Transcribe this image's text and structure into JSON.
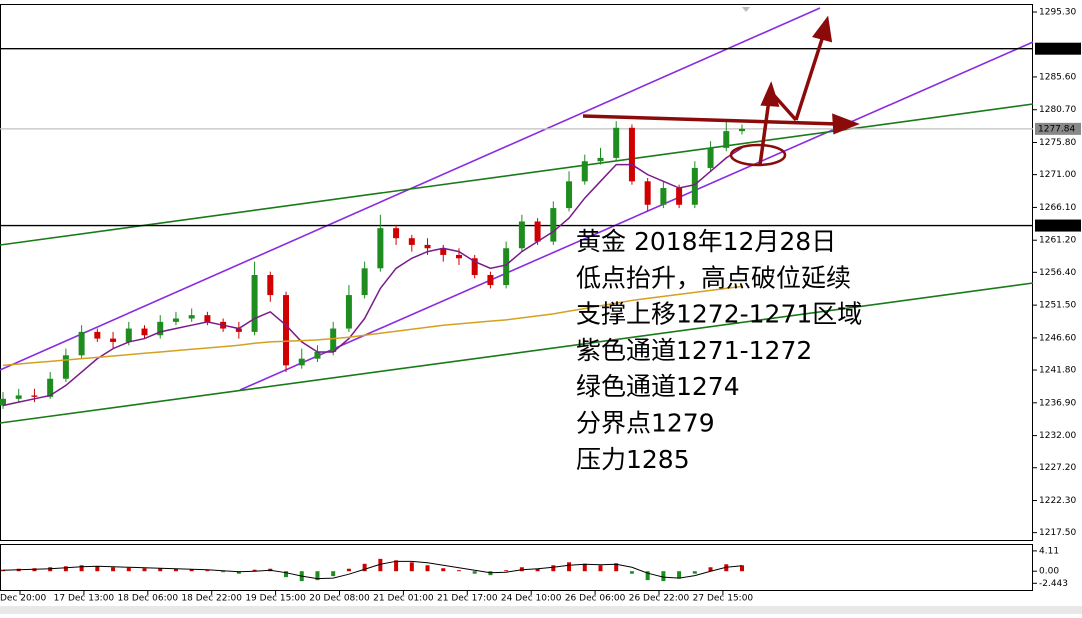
{
  "chart_data": {
    "type": "candlestick",
    "x_labels": [
      "Dec 20:00",
      "17 Dec 13:00",
      "18 Dec 06:00",
      "18 Dec 22:00",
      "19 Dec 15:00",
      "20 Dec 08:00",
      "21 Dec 01:00",
      "21 Dec 17:00",
      "24 Dec 10:00",
      "26 Dec 06:00",
      "26 Dec 22:00",
      "27 Dec 15:00"
    ],
    "open": [
      1236.5,
      1237.5,
      1238.0,
      1237.8,
      1240.5,
      1244.0,
      1247.5,
      1246.5,
      1246.0,
      1248.0,
      1247.0,
      1249.0,
      1249.5,
      1250.0,
      1249.0,
      1248.0,
      1247.5,
      1256.0,
      1253.0,
      1242.5,
      1243.5,
      1244.5,
      1248.0,
      1253.0,
      1257.0,
      1263.0,
      1261.5,
      1260.5,
      1260.0,
      1259.0,
      1258.5,
      1256.0,
      1254.5,
      1260.0,
      1264.0,
      1261.0,
      1266.0,
      1270.0,
      1273.0,
      1273.5,
      1278.0,
      1270.0,
      1266.5,
      1269.0,
      1266.5,
      1272.0,
      1275.0,
      1277.5
    ],
    "high": [
      1238.5,
      1239.0,
      1239.0,
      1241.5,
      1245.0,
      1248.5,
      1248.0,
      1247.5,
      1249.0,
      1248.5,
      1250.0,
      1250.5,
      1251.0,
      1250.5,
      1249.5,
      1249.0,
      1258.0,
      1256.5,
      1253.5,
      1245.0,
      1245.5,
      1249.0,
      1254.5,
      1258.0,
      1265.0,
      1263.5,
      1262.0,
      1261.5,
      1260.5,
      1260.0,
      1259.0,
      1256.5,
      1261.0,
      1265.0,
      1264.5,
      1267.0,
      1271.5,
      1274.0,
      1275.0,
      1279.0,
      1278.5,
      1270.5,
      1270.0,
      1269.5,
      1273.0,
      1276.0,
      1279.0,
      1278.5
    ],
    "low": [
      1236.0,
      1237.0,
      1237.0,
      1237.5,
      1240.0,
      1243.5,
      1246.0,
      1245.0,
      1245.5,
      1246.5,
      1246.5,
      1248.5,
      1249.0,
      1248.5,
      1247.5,
      1246.5,
      1247.0,
      1252.0,
      1241.5,
      1242.0,
      1243.0,
      1244.0,
      1247.5,
      1252.5,
      1256.5,
      1260.5,
      1259.5,
      1259.0,
      1258.0,
      1257.5,
      1255.5,
      1254.0,
      1254.0,
      1259.5,
      1260.5,
      1260.5,
      1265.5,
      1269.5,
      1272.5,
      1273.0,
      1269.5,
      1265.5,
      1266.0,
      1266.0,
      1266.0,
      1271.5,
      1274.5,
      1277.0
    ],
    "close": [
      1237.5,
      1238.0,
      1237.8,
      1240.5,
      1244.0,
      1247.5,
      1246.5,
      1246.0,
      1248.0,
      1247.0,
      1249.0,
      1249.5,
      1250.0,
      1249.0,
      1248.0,
      1247.5,
      1256.0,
      1253.0,
      1242.5,
      1243.5,
      1244.5,
      1248.0,
      1253.0,
      1257.0,
      1263.0,
      1261.5,
      1260.5,
      1260.0,
      1259.0,
      1258.5,
      1256.0,
      1254.5,
      1260.0,
      1264.0,
      1261.0,
      1266.0,
      1270.0,
      1273.0,
      1273.5,
      1278.0,
      1270.0,
      1266.5,
      1269.0,
      1266.5,
      1272.0,
      1275.0,
      1277.5,
      1277.84
    ],
    "up_color": "#1e8c1e",
    "down_color": "#d00000",
    "overlays": [
      {
        "color": "#7a1a8a",
        "values": [
          1236.5,
          1237,
          1237.5,
          1238,
          1239.5,
          1241.5,
          1243.5,
          1245,
          1246,
          1246.5,
          1247.5,
          1248,
          1248.5,
          1249,
          1248.5,
          1248,
          1249.5,
          1250.5,
          1248.5,
          1246,
          1244.5,
          1244.5,
          1246.5,
          1249.5,
          1254,
          1257,
          1258.5,
          1259.5,
          1260,
          1259.5,
          1258,
          1257,
          1257.5,
          1259.5,
          1261,
          1262.5,
          1264.5,
          1267.5,
          1270,
          1272.5,
          1272.5,
          1271,
          1270,
          1269,
          1269.5,
          1271.5,
          1273.5,
          1275
        ]
      },
      {
        "color": "#d4a020",
        "values": [
          1242.5,
          1242.7,
          1242.9,
          1243.1,
          1243.3,
          1243.5,
          1243.7,
          1243.9,
          1244.1,
          1244.3,
          1244.5,
          1244.7,
          1244.9,
          1245.1,
          1245.3,
          1245.5,
          1245.8,
          1246.0,
          1246.1,
          1246.2,
          1246.3,
          1246.5,
          1246.7,
          1247.0,
          1247.3,
          1247.6,
          1247.9,
          1248.2,
          1248.5,
          1248.7,
          1248.9,
          1249.1,
          1249.3,
          1249.6,
          1249.9,
          1250.2,
          1250.6,
          1251.0,
          1251.4,
          1251.8,
          1252.2,
          1252.5,
          1252.8,
          1253.1,
          1253.4,
          1253.7,
          1254.0,
          1254.3
        ]
      }
    ],
    "ylim": [
      1216.4,
      1296.35
    ],
    "yticks": [
      {
        "value": 1295.3,
        "label": "1295.30"
      },
      {
        "value": 1285.6,
        "label": "1285.60"
      },
      {
        "value": 1280.7,
        "label": "1280.70"
      },
      {
        "value": 1275.8,
        "label": "1275.80"
      },
      {
        "value": 1271,
        "label": "1271.00"
      },
      {
        "value": 1266.1,
        "label": "1266.10"
      },
      {
        "value": 1261.2,
        "label": "1261.20"
      },
      {
        "value": 1256.4,
        "label": "1256.40"
      },
      {
        "value": 1251.5,
        "label": "1251.50"
      },
      {
        "value": 1246.6,
        "label": "1246.60"
      },
      {
        "value": 1241.8,
        "label": "1241.80"
      },
      {
        "value": 1236.9,
        "label": "1236.90"
      },
      {
        "value": 1232,
        "label": "1232.00"
      },
      {
        "value": 1227.2,
        "label": "1227.20"
      },
      {
        "value": 1222.3,
        "label": "1222.30"
      },
      {
        "value": 1217.5,
        "label": "1217.50"
      }
    ],
    "price_lines": [
      {
        "value": 1289.82,
        "color": "#000000"
      },
      {
        "value": 1277.84,
        "color": "#c0c0c0"
      },
      {
        "value": 1263.39,
        "color": "#000000"
      }
    ],
    "annotation": [
      "黄金 2018年12月28日",
      "低点抬升，高点破位延续",
      "支撑上移1272-1271区域",
      "紫色通道1271-1272",
      "绿色通道1274",
      "分界点1279",
      "压力1285"
    ],
    "oscillator": {
      "values": [
        0.3,
        0.5,
        0.6,
        0.8,
        1.0,
        1.2,
        1.0,
        0.8,
        0.7,
        0.6,
        0.6,
        0.5,
        0.4,
        0.2,
        -0.2,
        -0.5,
        0.3,
        0.5,
        -1.2,
        -2.0,
        -1.8,
        -1.0,
        0.5,
        1.5,
        2.5,
        2.2,
        1.8,
        1.2,
        0.6,
        0.2,
        -0.5,
        -0.8,
        0.2,
        0.8,
        0.5,
        1.2,
        1.8,
        1.5,
        1.2,
        1.6,
        -0.5,
        -1.8,
        -2.0,
        -1.5,
        -0.5,
        0.8,
        1.4,
        1.2
      ],
      "up_color": "#d00000",
      "down_color": "#1e8c1e",
      "signal": {
        "color": "#000000",
        "values": [
          0.2,
          0.3,
          0.4,
          0.5,
          0.7,
          0.9,
          1.0,
          0.9,
          0.8,
          0.7,
          0.6,
          0.5,
          0.4,
          0.3,
          0.1,
          -0.1,
          0.0,
          0.2,
          -0.3,
          -1.0,
          -1.5,
          -1.4,
          -0.6,
          0.4,
          1.4,
          2.0,
          2.0,
          1.7,
          1.2,
          0.7,
          0.2,
          -0.3,
          -0.2,
          0.3,
          0.5,
          0.8,
          1.2,
          1.4,
          1.3,
          1.4,
          0.8,
          -0.4,
          -1.2,
          -1.4,
          -0.9,
          0.0,
          0.8,
          1.1
        ]
      },
      "ylim": [
        -3.8,
        5.3
      ],
      "yticks": [
        4.11,
        {
          "value": 0,
          "label": "0.00"
        },
        -2.443
      ]
    }
  }
}
